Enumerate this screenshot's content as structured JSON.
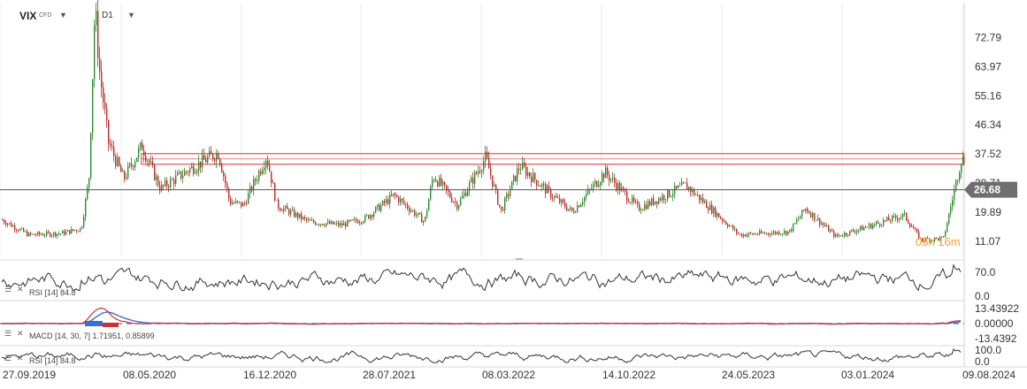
{
  "header": {
    "symbol": "VIX",
    "symbol_type": "CFD",
    "timeframe": "D1"
  },
  "timer": "05h 16m",
  "colors": {
    "up": "#2e8b2e",
    "down": "#c22a2a",
    "zone": "#d93030",
    "line": "#333333",
    "macd_signal": "#d03030",
    "macd_main": "#3a6fd0"
  },
  "main_axis_labels": [
    "72.79",
    "63.97",
    "55.16",
    "46.34",
    "37.52",
    "28.71",
    "19.89",
    "11.07"
  ],
  "current_price": "26.68",
  "indicators": {
    "rsi1": {
      "label": "RSI [14]  84.8",
      "levels": [
        "70.0",
        "0.0"
      ]
    },
    "macd": {
      "label": "MACD [14, 30, 7]  1.71951,  0.85899",
      "levels": [
        "13.43922",
        "0.00000",
        "-13.4392"
      ]
    },
    "rsi2": {
      "label": "RSI [14]  84.8",
      "levels": [
        "100.0",
        "0.0"
      ]
    }
  },
  "chart_data": {
    "type": "candlestick",
    "title": "VIX",
    "timeframe": "D1",
    "x_range": [
      "2019-09-27",
      "2024-08-09"
    ],
    "x_tick_labels": [
      "27.09.2019",
      "08.05.2020",
      "16.12.2020",
      "28.07.2021",
      "08.03.2022",
      "14.10.2022",
      "24.05.2023",
      "03.01.2024",
      "09.08.2024"
    ],
    "y_tick_labels": [
      72.79,
      63.97,
      55.16,
      46.34,
      37.52,
      28.71,
      19.89,
      11.07
    ],
    "ylim": [
      6.5,
      82.0
    ],
    "current_price": 26.68,
    "resistance_zone": {
      "from": "2020-06-11",
      "to": "2024-08-09",
      "low": 35.6,
      "high": 36.4
    },
    "price_path": [
      [
        "2019-09-27",
        17.5
      ],
      [
        "2019-11-15",
        13.0
      ],
      [
        "2020-01-15",
        13.5
      ],
      [
        "2020-02-20",
        15.0
      ],
      [
        "2020-03-05",
        30.0
      ],
      [
        "2020-03-16",
        82.0
      ],
      [
        "2020-03-25",
        62.0
      ],
      [
        "2020-04-10",
        41.0
      ],
      [
        "2020-05-08",
        30.0
      ],
      [
        "2020-06-11",
        40.0
      ],
      [
        "2020-07-15",
        27.0
      ],
      [
        "2020-09-08",
        33.0
      ],
      [
        "2020-10-30",
        38.0
      ],
      [
        "2020-11-20",
        23.0
      ],
      [
        "2020-12-16",
        22.0
      ],
      [
        "2021-01-27",
        37.0
      ],
      [
        "2021-02-15",
        22.0
      ],
      [
        "2021-04-15",
        17.0
      ],
      [
        "2021-06-15",
        16.0
      ],
      [
        "2021-07-28",
        18.0
      ],
      [
        "2021-09-20",
        25.0
      ],
      [
        "2021-11-15",
        17.0
      ],
      [
        "2021-12-01",
        31.0
      ],
      [
        "2022-01-15",
        22.0
      ],
      [
        "2022-03-08",
        36.5
      ],
      [
        "2022-04-05",
        20.0
      ],
      [
        "2022-05-10",
        34.0
      ],
      [
        "2022-07-15",
        24.0
      ],
      [
        "2022-08-15",
        20.0
      ],
      [
        "2022-10-14",
        32.0
      ],
      [
        "2022-12-15",
        21.0
      ],
      [
        "2023-03-13",
        28.0
      ],
      [
        "2023-05-24",
        17.0
      ],
      [
        "2023-06-20",
        13.0
      ],
      [
        "2023-09-20",
        14.0
      ],
      [
        "2023-10-20",
        21.0
      ],
      [
        "2023-12-15",
        12.5
      ],
      [
        "2024-01-03",
        13.5
      ],
      [
        "2024-04-19",
        19.0
      ],
      [
        "2024-05-20",
        11.5
      ],
      [
        "2024-07-01",
        12.0
      ],
      [
        "2024-08-05",
        38.0
      ],
      [
        "2024-08-09",
        26.68
      ]
    ],
    "rsi_last": 84.8,
    "macd_last": [
      1.71951,
      0.85899
    ]
  }
}
